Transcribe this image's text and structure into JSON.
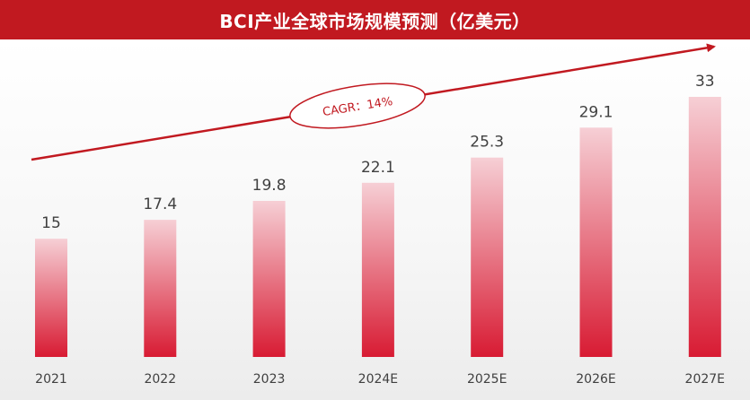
{
  "chart_data": {
    "type": "bar",
    "title": "BCI产业全球市场规模预测（亿美元）",
    "categories": [
      "2021",
      "2022",
      "2023",
      "2024E",
      "2025E",
      "2026E",
      "2027E"
    ],
    "values": [
      15,
      17.4,
      19.8,
      22.1,
      25.3,
      29.1,
      33
    ],
    "value_labels": [
      "15",
      "17.4",
      "19.8",
      "22.1",
      "25.3",
      "29.1",
      "33"
    ],
    "ylim": [
      0,
      34
    ],
    "grid": false,
    "annotation": "CAGR：14%"
  },
  "colors": {
    "title_bg": "#c11920",
    "bar_top": "#f6cfd5",
    "bar_bottom": "#d81b33",
    "trend_arrow": "#c11920"
  }
}
